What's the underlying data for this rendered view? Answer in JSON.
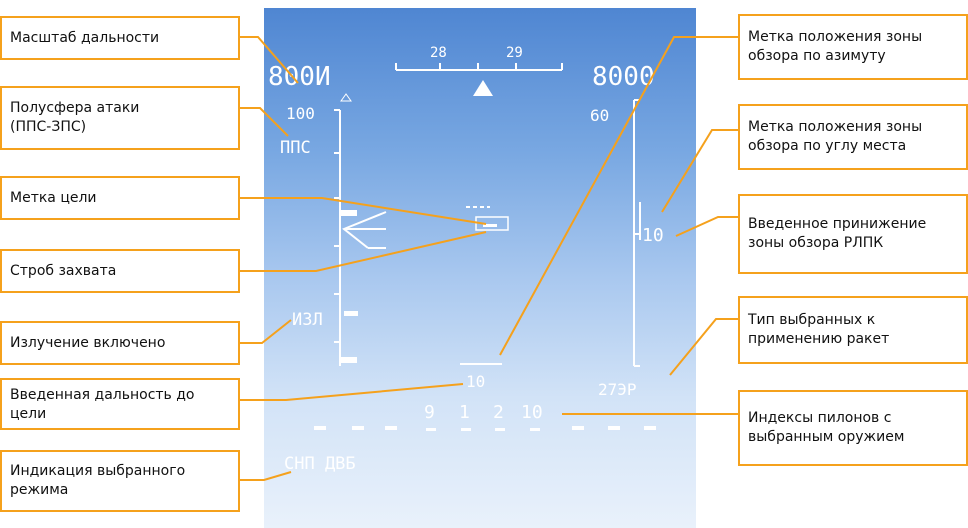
{
  "hud": {
    "heading_left": "28",
    "heading_right": "29",
    "range_scale": "800И",
    "altitude": "8000",
    "range_max": "100",
    "elevation_scale": "60",
    "hemisphere": "ППС",
    "radiation": "ИЗЛ",
    "depression": "10",
    "target_range": "10",
    "missile_type": "27ЭР",
    "pylons": [
      "9",
      "1",
      "2",
      "10"
    ],
    "mode": "СНП ДВБ"
  },
  "callouts": {
    "range_scale": "Масштаб дальности",
    "hemisphere": "Полусфера атаки\n (ППС-ЗПС)",
    "target_mark": "Метка цели",
    "lock_strobe": "Строб захвата",
    "radiation": "Излучение включено",
    "target_range": "Введенная дальность до цели",
    "mode": "Индикация выбранного режима",
    "azimuth_mark": "Метка положения зоны обзора по азимуту",
    "elevation_mark": "Метка положения зоны обзора по углу места",
    "depression": "Введенное принижение зоны обзора РЛПК",
    "missile_type": "Тип выбранных к применению ракет",
    "pylons": "Индексы пилонов с выбранным оружием"
  },
  "colors": {
    "callout_border": "#f5a11c",
    "leader_line": "#f5a11c",
    "hud_symbology": "#ffffff",
    "sky_top": "#4f86d2",
    "sky_bottom": "#e9f1fb"
  }
}
